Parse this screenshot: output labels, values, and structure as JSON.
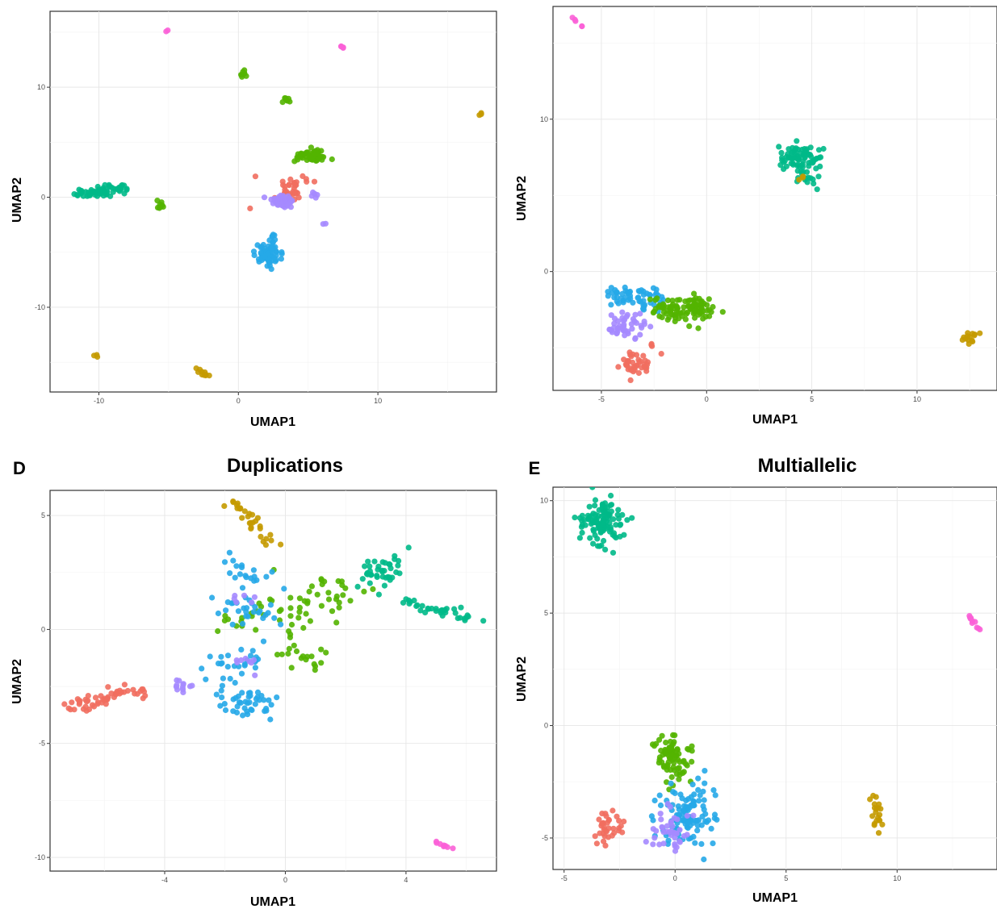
{
  "colors": {
    "red": "#F16E5F",
    "olive": "#C49A00",
    "green": "#53B400",
    "teal": "#00B988",
    "blue": "#26A9E8",
    "purple": "#A58AFF",
    "pink": "#FB61D7"
  },
  "chart_data": [
    {
      "type": "scatter",
      "letter": "",
      "title": "",
      "xlabel": "UMAP1",
      "ylabel": "UMAP2",
      "xlim": [
        -13.5,
        18.5
      ],
      "ylim": [
        -17.7,
        16.9
      ],
      "xticks": [
        -10,
        0,
        10
      ],
      "xtick_labels": [
        "-10",
        "0",
        "10"
      ],
      "yticks": [
        -10,
        0,
        10
      ],
      "ytick_labels": [
        "-10",
        "0",
        "10"
      ],
      "grid": true,
      "legend": "none",
      "clusters": [
        {
          "color": "teal",
          "shape": "line",
          "from": [
            -11.5,
            0.3
          ],
          "to": [
            -8.2,
            0.8
          ],
          "spread": 0.22,
          "n": 70
        },
        {
          "color": "green",
          "shape": "blob",
          "center": [
            -5.6,
            -0.7
          ],
          "spread": 0.18,
          "n": 8
        },
        {
          "color": "green",
          "shape": "blob",
          "center": [
            0.3,
            11.2
          ],
          "spread": 0.15,
          "n": 8
        },
        {
          "color": "green",
          "shape": "blob",
          "center": [
            3.5,
            8.9
          ],
          "spread": 0.15,
          "n": 8
        },
        {
          "color": "green",
          "shape": "line",
          "from": [
            4.3,
            3.5
          ],
          "to": [
            6.1,
            3.9
          ],
          "spread": 0.3,
          "n": 55
        },
        {
          "color": "red",
          "shape": "blob",
          "center": [
            3.8,
            0.6
          ],
          "spread": 0.55,
          "n": 35
        },
        {
          "color": "red",
          "shape": "blob",
          "center": [
            1.3,
            1.9
          ],
          "spread": 0.1,
          "n": 1
        },
        {
          "color": "red",
          "shape": "blob",
          "center": [
            0.8,
            -0.9
          ],
          "spread": 0.1,
          "n": 1
        },
        {
          "color": "purple",
          "shape": "line",
          "from": [
            2.2,
            -0.5
          ],
          "to": [
            3.8,
            -0.3
          ],
          "spread": 0.35,
          "n": 45
        },
        {
          "color": "purple",
          "shape": "blob",
          "center": [
            5.4,
            0.2
          ],
          "spread": 0.2,
          "n": 5
        },
        {
          "color": "purple",
          "shape": "blob",
          "center": [
            6.2,
            -2.4
          ],
          "spread": 0.1,
          "n": 2
        },
        {
          "color": "blue",
          "shape": "blob",
          "center": [
            2.1,
            -5.2
          ],
          "spread": 0.45,
          "n": 70
        },
        {
          "color": "blue",
          "shape": "line",
          "from": [
            2.0,
            -4.3
          ],
          "to": [
            2.6,
            -3.5
          ],
          "spread": 0.2,
          "n": 10
        },
        {
          "color": "pink",
          "shape": "blob",
          "center": [
            -5.1,
            15.1
          ],
          "spread": 0.06,
          "n": 2
        },
        {
          "color": "pink",
          "shape": "blob",
          "center": [
            7.4,
            13.7
          ],
          "spread": 0.12,
          "n": 4
        },
        {
          "color": "olive",
          "shape": "blob",
          "center": [
            17.3,
            7.5
          ],
          "spread": 0.08,
          "n": 3
        },
        {
          "color": "olive",
          "shape": "blob",
          "center": [
            -10.2,
            -14.5
          ],
          "spread": 0.1,
          "n": 3
        },
        {
          "color": "olive",
          "shape": "line",
          "from": [
            -3.0,
            -15.6
          ],
          "to": [
            -2.2,
            -16.2
          ],
          "spread": 0.12,
          "n": 10
        }
      ]
    },
    {
      "type": "scatter",
      "letter": "",
      "title": "",
      "xlabel": "UMAP1",
      "ylabel": "UMAP2",
      "xlim": [
        -7.3,
        13.8
      ],
      "ylim": [
        -7.8,
        17.4
      ],
      "xticks": [
        -5,
        0,
        5,
        10
      ],
      "xtick_labels": [
        "-5",
        "0",
        "5",
        "10"
      ],
      "yticks": [
        0,
        10
      ],
      "ytick_labels": [
        "0",
        "10"
      ],
      "grid": true,
      "legend": "none",
      "clusters": [
        {
          "color": "pink",
          "shape": "line",
          "from": [
            -6.2,
            16.5
          ],
          "to": [
            -5.9,
            16.0
          ],
          "spread": 0.08,
          "n": 5
        },
        {
          "color": "teal",
          "shape": "blob",
          "center": [
            4.5,
            7.5
          ],
          "spread": 0.45,
          "n": 80
        },
        {
          "color": "teal",
          "shape": "line",
          "from": [
            4.5,
            6.5
          ],
          "to": [
            5.0,
            5.4
          ],
          "spread": 0.18,
          "n": 12
        },
        {
          "color": "olive",
          "shape": "blob",
          "center": [
            4.4,
            6.2
          ],
          "spread": 0.1,
          "n": 3
        },
        {
          "color": "olive",
          "shape": "blob",
          "center": [
            12.6,
            -4.4
          ],
          "spread": 0.2,
          "n": 14
        },
        {
          "color": "blue",
          "shape": "line",
          "from": [
            -4.2,
            -1.4
          ],
          "to": [
            -2.3,
            -1.9
          ],
          "spread": 0.35,
          "n": 60
        },
        {
          "color": "green",
          "shape": "line",
          "from": [
            -2.3,
            -2.4
          ],
          "to": [
            0.2,
            -2.4
          ],
          "spread": 0.4,
          "n": 100
        },
        {
          "color": "purple",
          "shape": "blob",
          "center": [
            -3.7,
            -3.7
          ],
          "spread": 0.45,
          "n": 45
        },
        {
          "color": "red",
          "shape": "line",
          "from": [
            -3.9,
            -5.8
          ],
          "to": [
            -2.9,
            -6.3
          ],
          "spread": 0.3,
          "n": 40
        },
        {
          "color": "red",
          "shape": "blob",
          "center": [
            -2.6,
            -4.8
          ],
          "spread": 0.12,
          "n": 3
        },
        {
          "color": "red",
          "shape": "blob",
          "center": [
            -2.0,
            -5.4
          ],
          "spread": 0.1,
          "n": 1
        }
      ]
    },
    {
      "type": "scatter",
      "letter": "D",
      "title": "Duplications",
      "xlabel": "UMAP1",
      "ylabel": "UMAP2",
      "xlim": [
        -7.8,
        7.0
      ],
      "ylim": [
        -10.6,
        6.1
      ],
      "xticks": [
        -4,
        0,
        4
      ],
      "xtick_labels": [
        "-4",
        "0",
        "4"
      ],
      "yticks": [
        -10,
        -5,
        0,
        5
      ],
      "ytick_labels": [
        "-10",
        "-5",
        "0",
        "5"
      ],
      "grid": true,
      "legend": "none",
      "clusters": [
        {
          "color": "olive",
          "shape": "line",
          "from": [
            -1.7,
            5.6
          ],
          "to": [
            -0.3,
            3.5
          ],
          "spread": 0.15,
          "n": 30
        },
        {
          "color": "teal",
          "shape": "line",
          "from": [
            2.6,
            2.0
          ],
          "to": [
            3.8,
            3.1
          ],
          "spread": 0.3,
          "n": 40
        },
        {
          "color": "teal",
          "shape": "line",
          "from": [
            4.0,
            1.2
          ],
          "to": [
            6.6,
            0.4
          ],
          "spread": 0.12,
          "n": 35
        },
        {
          "color": "green",
          "shape": "line",
          "from": [
            -1.5,
            0.5
          ],
          "to": [
            2.4,
            1.6
          ],
          "spread": 0.5,
          "n": 60
        },
        {
          "color": "green",
          "shape": "line",
          "from": [
            0.2,
            -0.8
          ],
          "to": [
            1.1,
            -1.6
          ],
          "spread": 0.35,
          "n": 20
        },
        {
          "color": "blue",
          "shape": "line",
          "from": [
            -1.9,
            3.0
          ],
          "to": [
            -0.8,
            2.2
          ],
          "spread": 0.3,
          "n": 18
        },
        {
          "color": "blue",
          "shape": "line",
          "from": [
            -2.0,
            1.2
          ],
          "to": [
            -0.4,
            0.8
          ],
          "spread": 0.35,
          "n": 30
        },
        {
          "color": "blue",
          "shape": "line",
          "from": [
            -2.5,
            -1.7
          ],
          "to": [
            -0.6,
            -1.1
          ],
          "spread": 0.3,
          "n": 25
        },
        {
          "color": "blue",
          "shape": "blob",
          "center": [
            -1.3,
            -3.2
          ],
          "spread": 0.45,
          "n": 45
        },
        {
          "color": "purple",
          "shape": "line",
          "from": [
            -3.6,
            -2.3
          ],
          "to": [
            -3.2,
            -2.6
          ],
          "spread": 0.18,
          "n": 12
        },
        {
          "color": "purple",
          "shape": "blob",
          "center": [
            -1.6,
            1.3
          ],
          "spread": 0.25,
          "n": 6
        },
        {
          "color": "purple",
          "shape": "blob",
          "center": [
            -1.3,
            -1.4
          ],
          "spread": 0.3,
          "n": 8
        },
        {
          "color": "red",
          "shape": "line",
          "from": [
            -7.2,
            -3.4
          ],
          "to": [
            -4.8,
            -2.6
          ],
          "spread": 0.14,
          "n": 55
        },
        {
          "color": "pink",
          "shape": "line",
          "from": [
            5.0,
            -9.3
          ],
          "to": [
            5.5,
            -9.7
          ],
          "spread": 0.05,
          "n": 8
        }
      ]
    },
    {
      "type": "scatter",
      "letter": "E",
      "title": "Multiallelic",
      "xlabel": "UMAP1",
      "ylabel": "UMAP2",
      "xlim": [
        -5.5,
        14.5
      ],
      "ylim": [
        -6.4,
        10.6
      ],
      "xticks": [
        -5,
        0,
        5,
        10
      ],
      "xtick_labels": [
        "-5",
        "0",
        "5",
        "10"
      ],
      "yticks": [
        -5,
        0,
        5,
        10
      ],
      "ytick_labels": [
        "-5",
        "0",
        "5",
        "10"
      ],
      "grid": true,
      "legend": "none",
      "clusters": [
        {
          "color": "teal",
          "shape": "blob",
          "center": [
            -3.3,
            9.1
          ],
          "spread": 0.5,
          "n": 110
        },
        {
          "color": "pink",
          "shape": "line",
          "from": [
            13.2,
            4.9
          ],
          "to": [
            13.7,
            4.3
          ],
          "spread": 0.05,
          "n": 10
        },
        {
          "color": "green",
          "shape": "blob",
          "center": [
            -0.1,
            -1.6
          ],
          "spread": 0.5,
          "n": 80
        },
        {
          "color": "blue",
          "shape": "blob",
          "center": [
            0.6,
            -4.0
          ],
          "spread": 0.7,
          "n": 110
        },
        {
          "color": "purple",
          "shape": "blob",
          "center": [
            -0.2,
            -4.7
          ],
          "spread": 0.5,
          "n": 40
        },
        {
          "color": "red",
          "shape": "blob",
          "center": [
            -3.0,
            -4.5
          ],
          "spread": 0.35,
          "n": 35
        },
        {
          "color": "olive",
          "shape": "line",
          "from": [
            9.0,
            -3.1
          ],
          "to": [
            9.1,
            -4.5
          ],
          "spread": 0.12,
          "n": 20
        }
      ]
    }
  ]
}
